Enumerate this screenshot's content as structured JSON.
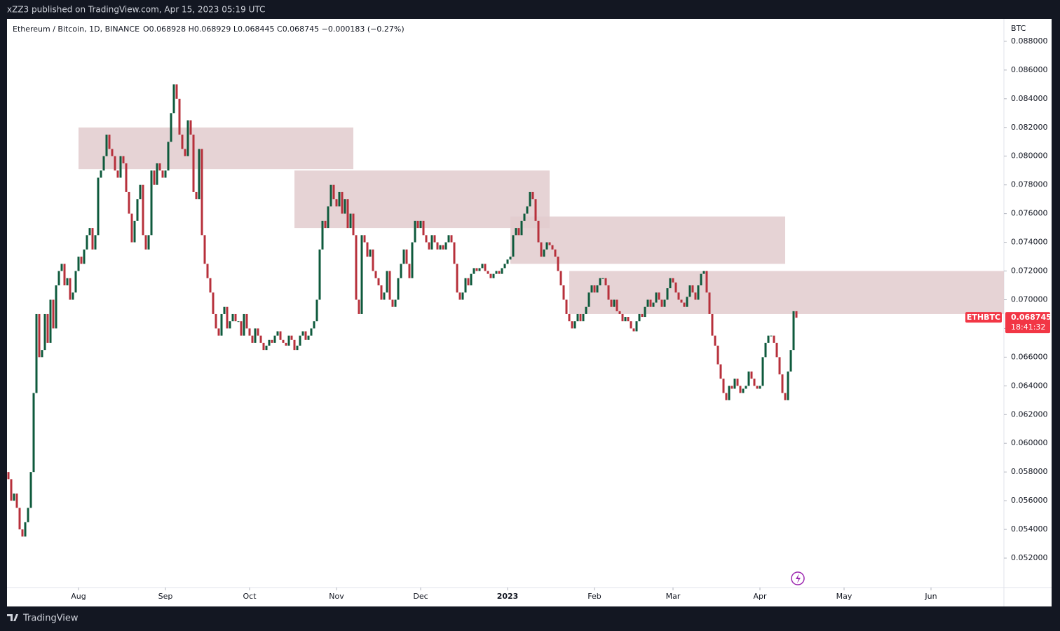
{
  "header": "xZZ3 published on TradingView.com, Apr 15, 2023 05:19 UTC",
  "footer": "TradingView",
  "chart_data": {
    "type": "candlestick",
    "title": "Ethereum / Bitcoin, 1D, BINANCE",
    "ohlc": "O0.068928 H0.068929 L0.068445 C0.068745 −0.000183 (−0.27%)",
    "y_unit": "BTC",
    "symbol": "ETHBTC",
    "last_price": "0.068745",
    "countdown": "18:41:32",
    "up_color": "#0e5a3c",
    "down_color": "#b7303b",
    "zone_color": "#e2cbce",
    "values": [
      0.058,
      0.0575,
      0.056,
      0.0565,
      0.0555,
      0.054,
      0.0535,
      0.0545,
      0.0555,
      0.058,
      0.0635,
      0.069,
      0.066,
      0.0665,
      0.069,
      0.067,
      0.07,
      0.068,
      0.071,
      0.072,
      0.0725,
      0.071,
      0.0715,
      0.07,
      0.0705,
      0.072,
      0.073,
      0.0725,
      0.0735,
      0.0745,
      0.075,
      0.0735,
      0.0745,
      0.0785,
      0.079,
      0.08,
      0.0815,
      0.0805,
      0.08,
      0.079,
      0.0785,
      0.08,
      0.0795,
      0.0775,
      0.076,
      0.074,
      0.0755,
      0.077,
      0.078,
      0.0745,
      0.0735,
      0.0745,
      0.079,
      0.078,
      0.0795,
      0.079,
      0.0785,
      0.079,
      0.081,
      0.083,
      0.085,
      0.084,
      0.0815,
      0.0805,
      0.08,
      0.0825,
      0.0815,
      0.0775,
      0.077,
      0.0805,
      0.0745,
      0.0725,
      0.0715,
      0.0705,
      0.069,
      0.068,
      0.0675,
      0.069,
      0.0695,
      0.068,
      0.0685,
      0.069,
      0.0685,
      0.0685,
      0.0675,
      0.069,
      0.068,
      0.0675,
      0.067,
      0.068,
      0.0675,
      0.067,
      0.0665,
      0.0668,
      0.0672,
      0.067,
      0.0675,
      0.0678,
      0.0672,
      0.067,
      0.0668,
      0.0675,
      0.0672,
      0.0665,
      0.0668,
      0.0675,
      0.0678,
      0.0672,
      0.0675,
      0.068,
      0.0685,
      0.07,
      0.0735,
      0.0755,
      0.075,
      0.0765,
      0.078,
      0.077,
      0.0765,
      0.0775,
      0.076,
      0.077,
      0.075,
      0.076,
      0.0745,
      0.07,
      0.069,
      0.0745,
      0.074,
      0.073,
      0.0735,
      0.072,
      0.0715,
      0.071,
      0.07,
      0.0705,
      0.072,
      0.07,
      0.0695,
      0.07,
      0.0715,
      0.0725,
      0.0735,
      0.0725,
      0.0715,
      0.074,
      0.0755,
      0.075,
      0.0755,
      0.0745,
      0.074,
      0.0735,
      0.0745,
      0.074,
      0.0735,
      0.0738,
      0.0735,
      0.074,
      0.0745,
      0.074,
      0.0725,
      0.0705,
      0.07,
      0.0705,
      0.0715,
      0.071,
      0.0718,
      0.0722,
      0.072,
      0.0722,
      0.0725,
      0.072,
      0.0718,
      0.0715,
      0.0718,
      0.072,
      0.0718,
      0.0722,
      0.0725,
      0.0728,
      0.073,
      0.0745,
      0.075,
      0.0745,
      0.0755,
      0.076,
      0.0765,
      0.0775,
      0.077,
      0.0755,
      0.074,
      0.073,
      0.0735,
      0.074,
      0.0738,
      0.0735,
      0.073,
      0.072,
      0.071,
      0.07,
      0.069,
      0.0685,
      0.068,
      0.0685,
      0.069,
      0.0685,
      0.069,
      0.0695,
      0.0705,
      0.071,
      0.0705,
      0.071,
      0.0715,
      0.0715,
      0.071,
      0.07,
      0.0695,
      0.07,
      0.0692,
      0.069,
      0.0685,
      0.0688,
      0.0685,
      0.068,
      0.0678,
      0.0685,
      0.069,
      0.0688,
      0.0695,
      0.07,
      0.0695,
      0.0698,
      0.0705,
      0.07,
      0.0695,
      0.07,
      0.0708,
      0.0715,
      0.0712,
      0.0705,
      0.07,
      0.0698,
      0.0695,
      0.0702,
      0.071,
      0.0705,
      0.07,
      0.071,
      0.0718,
      0.072,
      0.0705,
      0.069,
      0.0675,
      0.0668,
      0.0655,
      0.0645,
      0.0635,
      0.063,
      0.064,
      0.0638,
      0.0645,
      0.064,
      0.0635,
      0.0638,
      0.064,
      0.065,
      0.0645,
      0.064,
      0.0638,
      0.064,
      0.066,
      0.067,
      0.0675,
      0.0675,
      0.067,
      0.066,
      0.0648,
      0.0635,
      0.063,
      0.065,
      0.0665,
      0.0692,
      0.068745
    ],
    "zones": [
      {
        "x": [
          25,
          123
        ],
        "y": [
          0.0791,
          0.082
        ]
      },
      {
        "x": [
          102,
          193
        ],
        "y": [
          0.075,
          0.079
        ]
      },
      {
        "x": [
          179,
          277
        ],
        "y": [
          0.0725,
          0.0758
        ]
      },
      {
        "x": [
          200,
          355.5
        ],
        "y": [
          0.069,
          0.072
        ]
      }
    ],
    "xlim": [
      -0.5,
      355
    ],
    "xticks": [
      {
        "value": 25,
        "label": "Aug"
      },
      {
        "value": 56,
        "label": "Sep"
      },
      {
        "value": 86,
        "label": "Oct"
      },
      {
        "value": 117,
        "label": "Nov"
      },
      {
        "value": 147,
        "label": "Dec"
      },
      {
        "value": 178,
        "label": "2023"
      },
      {
        "value": 209,
        "label": "Feb"
      },
      {
        "value": 237,
        "label": "Mar"
      },
      {
        "value": 268,
        "label": "Apr"
      },
      {
        "value": 298,
        "label": "May"
      },
      {
        "value": 329,
        "label": "Jun"
      }
    ],
    "ylim": [
      0.04995,
      0.08956
    ],
    "yticks": [
      {
        "value": 0.052,
        "label": "0.052000"
      },
      {
        "value": 0.054,
        "label": "0.054000"
      },
      {
        "value": 0.056,
        "label": "0.056000"
      },
      {
        "value": 0.058,
        "label": "0.058000"
      },
      {
        "value": 0.06,
        "label": "0.060000"
      },
      {
        "value": 0.062,
        "label": "0.062000"
      },
      {
        "value": 0.064,
        "label": "0.064000"
      },
      {
        "value": 0.066,
        "label": "0.066000"
      },
      {
        "value": 0.068,
        "label": "0.068000"
      },
      {
        "value": 0.07,
        "label": "0.070000"
      },
      {
        "value": 0.072,
        "label": "0.072000"
      },
      {
        "value": 0.074,
        "label": "0.074000"
      },
      {
        "value": 0.076,
        "label": "0.076000"
      },
      {
        "value": 0.078,
        "label": "0.078000"
      },
      {
        "value": 0.08,
        "label": "0.080000"
      },
      {
        "value": 0.082,
        "label": "0.082000"
      },
      {
        "value": 0.084,
        "label": "0.084000"
      },
      {
        "value": 0.086,
        "label": "0.086000"
      },
      {
        "value": 0.088,
        "label": "0.088000"
      }
    ]
  }
}
